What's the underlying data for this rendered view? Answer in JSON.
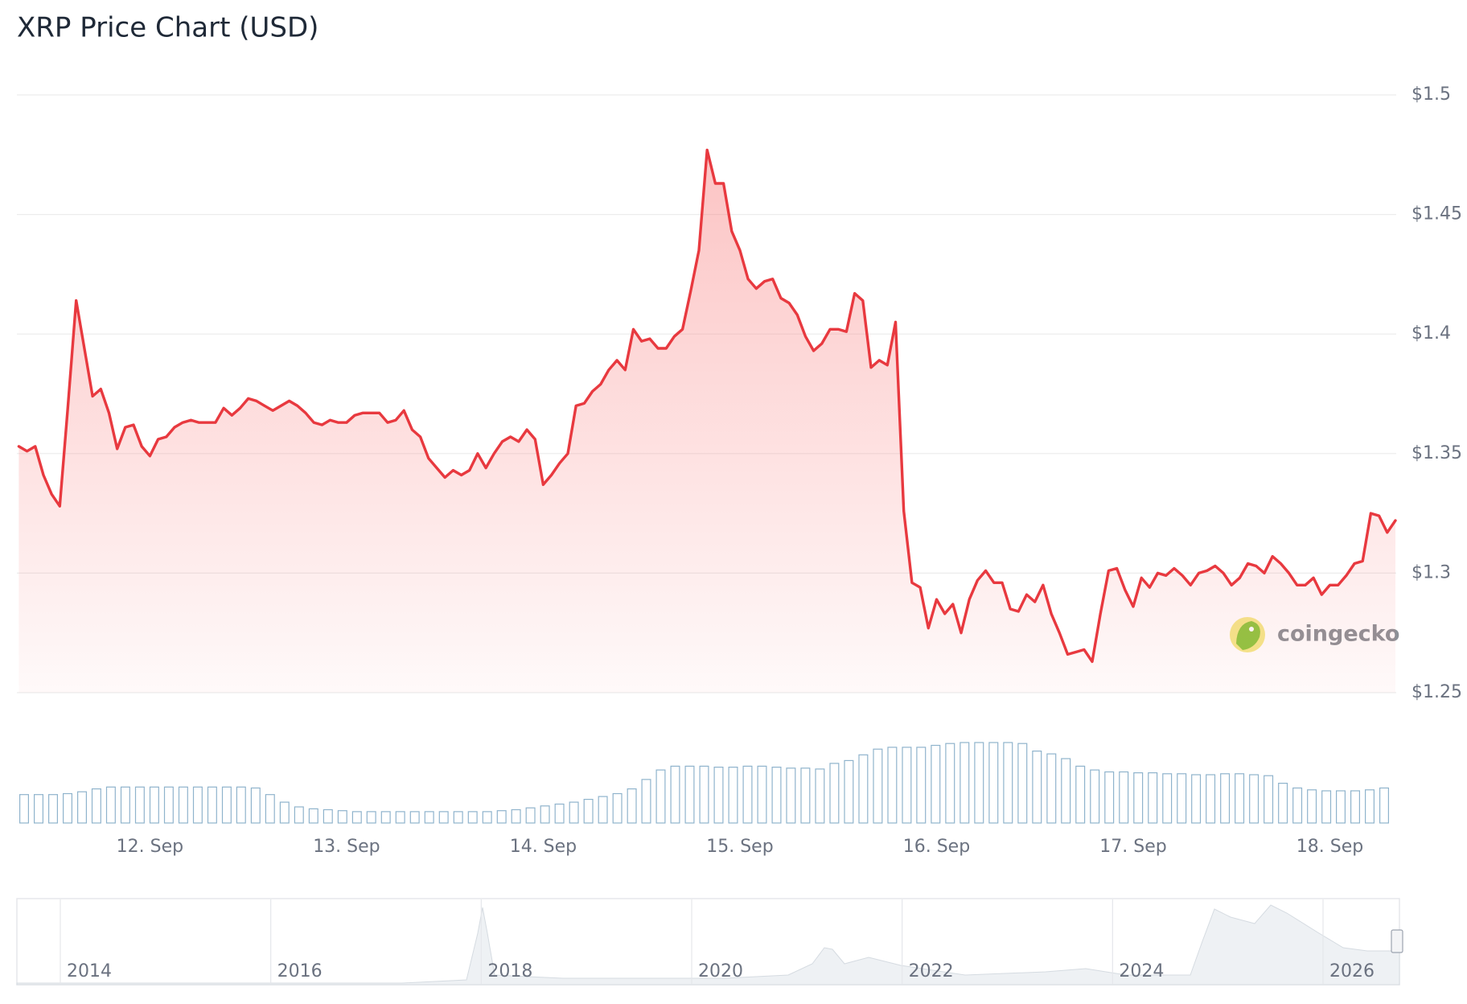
{
  "chart_data": {
    "type": "line",
    "title": "XRP Price Chart (USD)",
    "color": "#e8393f",
    "categories": [
      null,
      null,
      null,
      null,
      null,
      null,
      null,
      null,
      null,
      null,
      null,
      null,
      null,
      null,
      null,
      null,
      "12. Sep",
      null,
      null,
      null,
      null,
      null,
      null,
      null,
      null,
      null,
      null,
      null,
      null,
      null,
      null,
      null,
      null,
      null,
      null,
      null,
      null,
      null,
      null,
      null,
      "13. Sep",
      null,
      null,
      null,
      null,
      null,
      null,
      null,
      null,
      null,
      null,
      null,
      null,
      null,
      null,
      null,
      null,
      null,
      null,
      null,
      null,
      null,
      null,
      null,
      "14. Sep",
      null,
      null,
      null,
      null,
      null,
      null,
      null,
      null,
      null,
      null,
      null,
      null,
      null,
      null,
      null,
      null,
      null,
      null,
      null,
      null,
      null,
      null,
      null,
      "15. Sep",
      null,
      null,
      null,
      null,
      null,
      null,
      null,
      null,
      null,
      null,
      null,
      null,
      null,
      null,
      null,
      null,
      null,
      null,
      null,
      null,
      null,
      null,
      null,
      "16. Sep",
      null,
      null,
      null,
      null,
      null,
      null,
      null,
      null,
      null,
      null,
      null,
      null,
      null,
      null,
      null,
      null,
      null,
      null,
      null,
      null,
      null,
      null,
      null,
      "17. Sep",
      null,
      null,
      null,
      null,
      null,
      null,
      null,
      null,
      null,
      null,
      null,
      null,
      null,
      null,
      null,
      null,
      null,
      null,
      null,
      null,
      null,
      null,
      null,
      "18. Sep",
      null,
      null,
      null,
      null,
      null,
      null,
      null,
      null
    ],
    "values": [
      1.353,
      1.351,
      1.353,
      1.341,
      1.333,
      1.328,
      1.37,
      1.414,
      1.394,
      1.374,
      1.377,
      1.367,
      1.352,
      1.361,
      1.362,
      1.353,
      1.349,
      1.356,
      1.357,
      1.361,
      1.363,
      1.364,
      1.363,
      1.363,
      1.363,
      1.369,
      1.366,
      1.369,
      1.373,
      1.372,
      1.37,
      1.368,
      1.37,
      1.372,
      1.37,
      1.367,
      1.363,
      1.362,
      1.364,
      1.363,
      1.363,
      1.366,
      1.367,
      1.367,
      1.367,
      1.363,
      1.364,
      1.368,
      1.36,
      1.357,
      1.348,
      1.344,
      1.34,
      1.343,
      1.341,
      1.343,
      1.35,
      1.344,
      1.35,
      1.355,
      1.357,
      1.355,
      1.36,
      1.356,
      1.337,
      1.341,
      1.346,
      1.35,
      1.37,
      1.371,
      1.376,
      1.379,
      1.385,
      1.389,
      1.385,
      1.402,
      1.397,
      1.398,
      1.394,
      1.394,
      1.399,
      1.402,
      1.418,
      1.435,
      1.477,
      1.463,
      1.463,
      1.443,
      1.435,
      1.423,
      1.419,
      1.422,
      1.423,
      1.415,
      1.413,
      1.408,
      1.399,
      1.393,
      1.396,
      1.402,
      1.402,
      1.401,
      1.417,
      1.414,
      1.386,
      1.389,
      1.387,
      1.405,
      1.326,
      1.296,
      1.294,
      1.277,
      1.289,
      1.283,
      1.287,
      1.275,
      1.289,
      1.297,
      1.301,
      1.296,
      1.296,
      1.285,
      1.284,
      1.291,
      1.288,
      1.295,
      1.283,
      1.275,
      1.266,
      1.267,
      1.268,
      1.263,
      1.283,
      1.301,
      1.302,
      1.293,
      1.286,
      1.298,
      1.294,
      1.3,
      1.299,
      1.302,
      1.299,
      1.295,
      1.3,
      1.301,
      1.303,
      1.3,
      1.295,
      1.298,
      1.304,
      1.303,
      1.3,
      1.307,
      1.304,
      1.3,
      1.295,
      1.295,
      1.298,
      1.291,
      1.295,
      1.295,
      1.299,
      1.304,
      1.305,
      1.325,
      1.324,
      1.317,
      1.322
    ],
    "ylim": [
      1.25,
      1.5
    ],
    "yticks": [
      {
        "value": 1.25,
        "label": "$1.25"
      },
      {
        "value": 1.3,
        "label": "$1.3"
      },
      {
        "value": 1.35,
        "label": "$1.35"
      },
      {
        "value": 1.4,
        "label": "$1.4"
      },
      {
        "value": 1.45,
        "label": "$1.45"
      },
      {
        "value": 1.5,
        "label": "$1.5"
      }
    ],
    "grid": true,
    "volume": {
      "color": "#8fb3cc",
      "values": [
        30,
        30,
        30,
        31,
        33,
        36,
        38,
        38,
        38,
        38,
        38,
        38,
        38,
        38,
        38,
        38,
        37,
        30,
        22,
        17,
        15,
        14,
        13,
        12,
        12,
        12,
        12,
        12,
        12,
        12,
        12,
        12,
        12,
        13,
        14,
        16,
        18,
        20,
        22,
        25,
        28,
        31,
        36,
        46,
        56,
        60,
        60,
        60,
        59,
        59,
        60,
        60,
        59,
        58,
        58,
        57,
        63,
        66,
        72,
        78,
        80,
        80,
        80,
        82,
        84,
        85,
        85,
        85,
        85,
        84,
        76,
        73,
        68,
        60,
        56,
        54,
        54,
        53,
        53,
        52,
        52,
        51,
        51,
        52,
        52,
        51,
        50,
        42,
        37,
        35,
        34,
        34,
        34,
        35,
        37
      ]
    },
    "navigator": {
      "labels": [
        "2014",
        "2016",
        "2018",
        "2020",
        "2022",
        "2024",
        "2026"
      ]
    },
    "watermark": "coingecko"
  }
}
